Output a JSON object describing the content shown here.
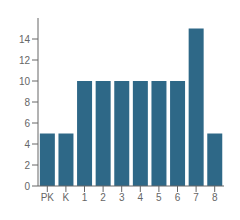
{
  "chart_data": {
    "type": "bar",
    "categories": [
      "PK",
      "K",
      "1",
      "2",
      "3",
      "4",
      "5",
      "6",
      "7",
      "8"
    ],
    "values": [
      5,
      5,
      10,
      10,
      10,
      10,
      10,
      10,
      15,
      5
    ],
    "color": "#2e6887",
    "ylim": [
      0,
      16
    ],
    "yticks": [
      0,
      2,
      4,
      6,
      8,
      10,
      12,
      14
    ],
    "grid": false
  }
}
